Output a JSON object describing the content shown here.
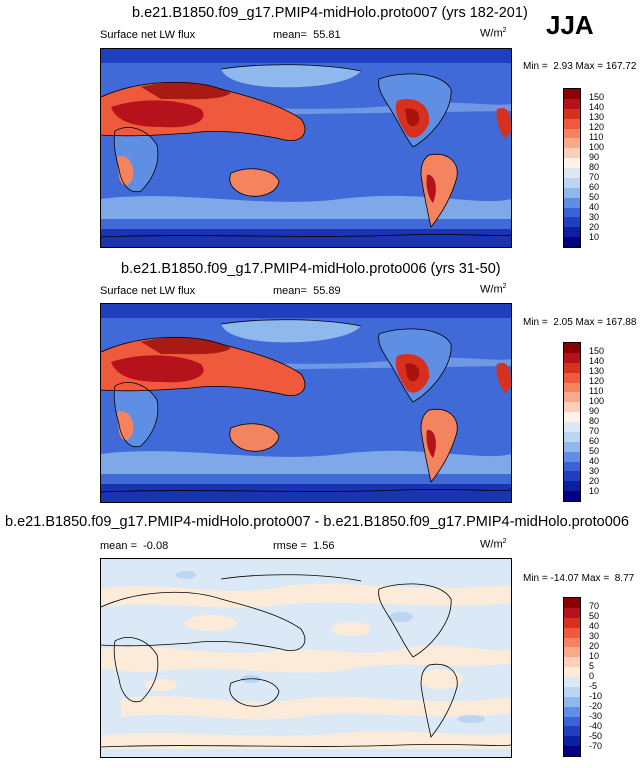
{
  "season": "JJA",
  "panels": [
    {
      "title": "b.e21.B1850.f09_g17.PMIP4-midHolo.proto007 (yrs 182-201)",
      "variable": "Surface net LW flux",
      "mean_label": "mean=",
      "mean": "55.81",
      "units": "W/m",
      "units_sup": "2",
      "min_label": "Min =",
      "min": "2.93",
      "max_label": "Max =",
      "max": "167.72",
      "levels": [
        "150",
        "140",
        "130",
        "120",
        "110",
        "100",
        "90",
        "80",
        "70",
        "60",
        "50",
        "40",
        "30",
        "20",
        "10"
      ],
      "colors": [
        "#8b0000",
        "#b5121b",
        "#d7301f",
        "#ef5a3c",
        "#f4845f",
        "#f7a98b",
        "#fbd0bb",
        "#fdf1e8",
        "#dbe9f6",
        "#bcd6f2",
        "#8fb8ec",
        "#5f8fe4",
        "#3a64d6",
        "#1f3fbf",
        "#0b1fa3",
        "#000080"
      ]
    },
    {
      "title": "b.e21.B1850.f09_g17.PMIP4-midHolo.proto006 (yrs 31-50)",
      "variable": "Surface net LW flux",
      "mean_label": "mean=",
      "mean": "55.89",
      "units": "W/m",
      "units_sup": "2",
      "min_label": "Min =",
      "min": "2.05",
      "max_label": "Max =",
      "max": "167.88",
      "levels": [
        "150",
        "140",
        "130",
        "120",
        "110",
        "100",
        "90",
        "80",
        "70",
        "60",
        "50",
        "40",
        "30",
        "20",
        "10"
      ],
      "colors": [
        "#8b0000",
        "#b5121b",
        "#d7301f",
        "#ef5a3c",
        "#f4845f",
        "#f7a98b",
        "#fbd0bb",
        "#fdf1e8",
        "#dbe9f6",
        "#bcd6f2",
        "#8fb8ec",
        "#5f8fe4",
        "#3a64d6",
        "#1f3fbf",
        "#0b1fa3",
        "#000080"
      ]
    },
    {
      "title": "b.e21.B1850.f09_g17.PMIP4-midHolo.proto007 - b.e21.B1850.f09_g17.PMIP4-midHolo.proto006",
      "mean_label": "mean =",
      "mean": "-0.08",
      "rmse_label": "rmse =",
      "rmse": "1.56",
      "units": "W/m",
      "units_sup": "2",
      "min_label": "Min =",
      "min": "-14.07",
      "max_label": "Max =",
      "max": "8.77",
      "levels": [
        "70",
        "50",
        "40",
        "30",
        "20",
        "10",
        "5",
        "0",
        "-5",
        "-10",
        "-20",
        "-30",
        "-40",
        "-50",
        "-70"
      ],
      "colors": [
        "#8b0000",
        "#b5121b",
        "#d7301f",
        "#ef5a3c",
        "#f4845f",
        "#f7a98b",
        "#fbd0bb",
        "#fdebd9",
        "#dbe9f6",
        "#bcd6f2",
        "#8fb8ec",
        "#5f8fe4",
        "#3a64d6",
        "#1f3fbf",
        "#0b1fa3",
        "#000080"
      ]
    }
  ]
}
